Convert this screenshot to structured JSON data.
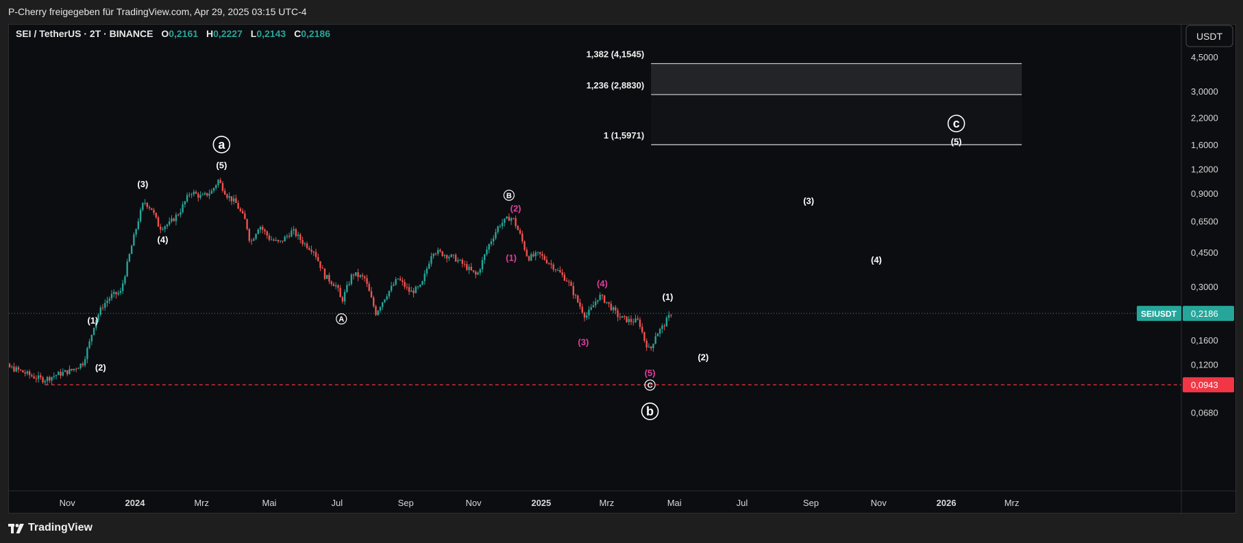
{
  "header": {
    "share_text": "P-Cherry freigegeben für TradingView.com, Apr 29, 2025 03:15 UTC-4"
  },
  "legend": {
    "symbol": "SEI / TetherUS · 2T · BINANCE",
    "o_label": "O",
    "o_value": "0,2161",
    "h_label": "H",
    "h_value": "0,2227",
    "l_label": "L",
    "l_value": "0,2143",
    "c_label": "C",
    "c_value": "0,2186"
  },
  "currency_button": "USDT",
  "footer": {
    "brand": "TradingView"
  },
  "colors": {
    "up": "#26a69a",
    "down": "#ef5350",
    "magenta": "#e040a0",
    "bg": "#0c0d10",
    "price_tag": "#26a69a",
    "level_tag": "#f23645"
  },
  "chart_data": {
    "type": "candlestick",
    "symbol": "SEIUSDT",
    "scale": "log",
    "ylim": [
      0.058,
      5.5
    ],
    "y_ticks": [
      {
        "v": 4.5,
        "label": "4,5000"
      },
      {
        "v": 3.0,
        "label": "3,0000"
      },
      {
        "v": 2.2,
        "label": "2,2000"
      },
      {
        "v": 1.6,
        "label": "1,6000"
      },
      {
        "v": 1.2,
        "label": "1,2000"
      },
      {
        "v": 0.9,
        "label": "0,9000"
      },
      {
        "v": 0.65,
        "label": "0,6500"
      },
      {
        "v": 0.45,
        "label": "0,4500"
      },
      {
        "v": 0.3,
        "label": "0,3000"
      },
      {
        "v": 0.16,
        "label": "0,1600"
      },
      {
        "v": 0.12,
        "label": "0,1200"
      },
      {
        "v": 0.068,
        "label": "0,0680"
      }
    ],
    "x_ticks": [
      {
        "t": "2023-11-01",
        "label": "Nov"
      },
      {
        "t": "2024-01-01",
        "label": "2024"
      },
      {
        "t": "2024-03-01",
        "label": "Mrz"
      },
      {
        "t": "2024-05-01",
        "label": "Mai"
      },
      {
        "t": "2024-07-01",
        "label": "Jul"
      },
      {
        "t": "2024-09-01",
        "label": "Sep"
      },
      {
        "t": "2024-11-01",
        "label": "Nov"
      },
      {
        "t": "2025-01-01",
        "label": "2025"
      },
      {
        "t": "2025-03-01",
        "label": "Mrz"
      },
      {
        "t": "2025-05-01",
        "label": "Mai"
      },
      {
        "t": "2025-07-01",
        "label": "Jul"
      },
      {
        "t": "2025-09-01",
        "label": "Sep"
      },
      {
        "t": "2025-11-01",
        "label": "Nov"
      },
      {
        "t": "2026-01-01",
        "label": "2026"
      },
      {
        "t": "2026-03-01",
        "label": "Mrz"
      }
    ],
    "price_path": [
      [
        "2023-08-15",
        0.13
      ],
      [
        "2023-08-25",
        0.125
      ],
      [
        "2023-09-05",
        0.118
      ],
      [
        "2023-09-18",
        0.112
      ],
      [
        "2023-10-01",
        0.104
      ],
      [
        "2023-10-11",
        0.1
      ],
      [
        "2023-10-22",
        0.106
      ],
      [
        "2023-11-05",
        0.112
      ],
      [
        "2023-11-15",
        0.122
      ],
      [
        "2023-11-21",
        0.155
      ],
      [
        "2023-11-26",
        0.2
      ],
      [
        "2023-12-03",
        0.24
      ],
      [
        "2023-12-11",
        0.27
      ],
      [
        "2023-12-19",
        0.28
      ],
      [
        "2023-12-28",
        0.46
      ],
      [
        "2024-01-04",
        0.66
      ],
      [
        "2024-01-09",
        0.82
      ],
      [
        "2024-01-16",
        0.75
      ],
      [
        "2024-01-23",
        0.6
      ],
      [
        "2024-02-01",
        0.63
      ],
      [
        "2024-02-10",
        0.72
      ],
      [
        "2024-02-20",
        0.92
      ],
      [
        "2024-03-01",
        0.86
      ],
      [
        "2024-03-10",
        0.92
      ],
      [
        "2024-03-16",
        1.05
      ],
      [
        "2024-03-24",
        0.88
      ],
      [
        "2024-04-01",
        0.8
      ],
      [
        "2024-04-10",
        0.64
      ],
      [
        "2024-04-14",
        0.5
      ],
      [
        "2024-04-22",
        0.62
      ],
      [
        "2024-05-01",
        0.53
      ],
      [
        "2024-05-10",
        0.5
      ],
      [
        "2024-05-22",
        0.58
      ],
      [
        "2024-06-01",
        0.5
      ],
      [
        "2024-06-10",
        0.46
      ],
      [
        "2024-06-20",
        0.34
      ],
      [
        "2024-07-01",
        0.3
      ],
      [
        "2024-07-05",
        0.25
      ],
      [
        "2024-07-15",
        0.35
      ],
      [
        "2024-07-26",
        0.33
      ],
      [
        "2024-08-05",
        0.22
      ],
      [
        "2024-08-14",
        0.27
      ],
      [
        "2024-08-25",
        0.33
      ],
      [
        "2024-09-05",
        0.28
      ],
      [
        "2024-09-15",
        0.3
      ],
      [
        "2024-09-25",
        0.46
      ],
      [
        "2024-10-05",
        0.44
      ],
      [
        "2024-10-15",
        0.42
      ],
      [
        "2024-10-25",
        0.38
      ],
      [
        "2024-11-04",
        0.34
      ],
      [
        "2024-11-14",
        0.48
      ],
      [
        "2024-11-24",
        0.62
      ],
      [
        "2024-12-04",
        0.68
      ],
      [
        "2024-12-07",
        0.66
      ],
      [
        "2024-12-13",
        0.55
      ],
      [
        "2024-12-20",
        0.42
      ],
      [
        "2024-12-30",
        0.44
      ],
      [
        "2025-01-12",
        0.38
      ],
      [
        "2025-01-25",
        0.32
      ],
      [
        "2025-02-03",
        0.25
      ],
      [
        "2025-02-10",
        0.21
      ],
      [
        "2025-02-15",
        0.23
      ],
      [
        "2025-02-22",
        0.27
      ],
      [
        "2025-03-01",
        0.25
      ],
      [
        "2025-03-12",
        0.21
      ],
      [
        "2025-03-22",
        0.2
      ],
      [
        "2025-03-30",
        0.2
      ],
      [
        "2025-04-04",
        0.16
      ],
      [
        "2025-04-09",
        0.14
      ],
      [
        "2025-04-14",
        0.17
      ],
      [
        "2025-04-20",
        0.185
      ],
      [
        "2025-04-28",
        0.2186
      ]
    ],
    "last_price": {
      "value": 0.2186,
      "symbol_label": "SEIUSDT",
      "value_label": "0,2186"
    },
    "support_level": {
      "value": 0.0943,
      "label": "0,0943"
    },
    "fib_levels": [
      {
        "value": 4.1545,
        "label": "1,382 (4,1545)"
      },
      {
        "value": 2.883,
        "label": "1,236 (2,8830)"
      },
      {
        "value": 1.5971,
        "label": "1 (1,5971)"
      }
    ],
    "fib_range": {
      "from": "2025-04-10",
      "to": "2026-03-10"
    },
    "wave_labels": [
      {
        "text": "(1)",
        "t": "2023-11-24",
        "v": 0.2,
        "color": "white"
      },
      {
        "text": "(2)",
        "t": "2023-12-01",
        "v": 0.115,
        "color": "white"
      },
      {
        "text": "(3)",
        "t": "2024-01-08",
        "v": 1.0,
        "color": "white"
      },
      {
        "text": "(4)",
        "t": "2024-01-26",
        "v": 0.52,
        "color": "white"
      },
      {
        "text": "(5)",
        "t": "2024-03-19",
        "v": 1.25,
        "color": "white"
      },
      {
        "text": "a",
        "t": "2024-03-19",
        "v": 1.6,
        "color": "white",
        "circle": true,
        "size": "big"
      },
      {
        "text": "A",
        "t": "2024-07-05",
        "v": 0.205,
        "color": "white",
        "circle": true,
        "size": "small"
      },
      {
        "text": "B",
        "t": "2024-12-03",
        "v": 0.88,
        "color": "white",
        "circle": true,
        "size": "small"
      },
      {
        "text": "(2)",
        "t": "2024-12-09",
        "v": 0.75,
        "color": "magenta"
      },
      {
        "text": "(1)",
        "t": "2024-12-05",
        "v": 0.42,
        "color": "magenta"
      },
      {
        "text": "(3)",
        "t": "2025-02-08",
        "v": 0.155,
        "color": "magenta"
      },
      {
        "text": "(4)",
        "t": "2025-02-25",
        "v": 0.31,
        "color": "magenta"
      },
      {
        "text": "(5)",
        "t": "2025-04-09",
        "v": 0.108,
        "color": "magenta"
      },
      {
        "text": "C",
        "t": "2025-04-09",
        "v": 0.094,
        "color": "white",
        "circle": true,
        "size": "small"
      },
      {
        "text": "b",
        "t": "2025-04-09",
        "v": 0.069,
        "color": "white",
        "circle": true,
        "size": "big"
      },
      {
        "text": "(1)",
        "t": "2025-04-25",
        "v": 0.265,
        "color": "white"
      },
      {
        "text": "(2)",
        "t": "2025-05-27",
        "v": 0.13,
        "color": "white"
      },
      {
        "text": "(3)",
        "t": "2025-08-30",
        "v": 0.82,
        "color": "white"
      },
      {
        "text": "(4)",
        "t": "2025-10-30",
        "v": 0.41,
        "color": "white"
      },
      {
        "text": "(5)",
        "t": "2026-01-10",
        "v": 1.65,
        "color": "white"
      },
      {
        "text": "c",
        "t": "2026-01-10",
        "v": 2.05,
        "color": "white",
        "circle": true,
        "size": "big"
      }
    ]
  }
}
